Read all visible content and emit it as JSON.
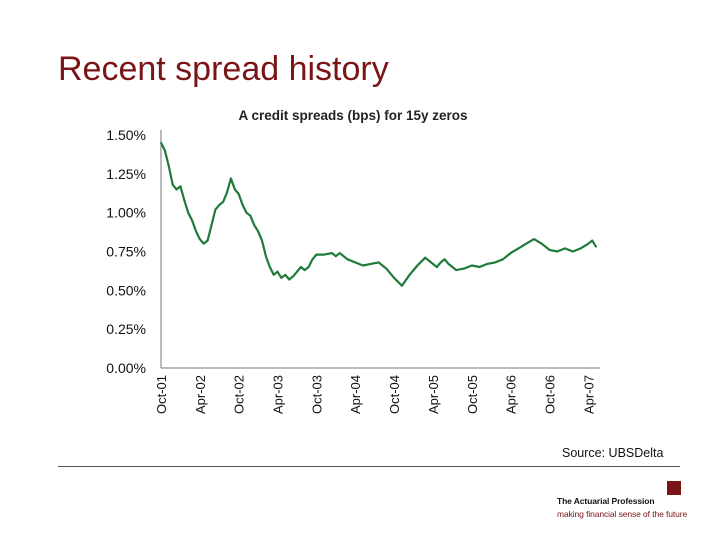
{
  "slide": {
    "title": "Recent spread history",
    "source": "Source: UBSDelta"
  },
  "branding": {
    "name": "The Actuarial Profession",
    "tagline": "making financial sense of the future",
    "color": "#7a1416"
  },
  "chart_data": {
    "type": "line",
    "title": "A credit spreads (bps) for 15y zeros",
    "ylim": [
      0,
      1.5
    ],
    "yticks": [
      1.5,
      1.25,
      1.0,
      0.75,
      0.5,
      0.25,
      0.0
    ],
    "ytick_labels": [
      "1.50%",
      "1.25%",
      "1.00%",
      "0.75%",
      "0.50%",
      "0.25%",
      "0.00%"
    ],
    "xticks": [
      "Oct-01",
      "Apr-02",
      "Oct-02",
      "Apr-03",
      "Oct-03",
      "Apr-04",
      "Oct-04",
      "Apr-05",
      "Oct-05",
      "Apr-06",
      "Oct-06",
      "Apr-07"
    ],
    "xlim": [
      0,
      11.3
    ],
    "line_color": "#1f7a3a",
    "series": [
      {
        "name": "A credit spreads (bps) for 15y zeros",
        "x": [
          0,
          0.1,
          0.2,
          0.3,
          0.4,
          0.5,
          0.6,
          0.7,
          0.8,
          0.9,
          1.0,
          1.1,
          1.2,
          1.3,
          1.4,
          1.5,
          1.6,
          1.7,
          1.8,
          1.9,
          2.0,
          2.1,
          2.2,
          2.3,
          2.4,
          2.5,
          2.6,
          2.7,
          2.8,
          2.9,
          3.0,
          3.1,
          3.2,
          3.3,
          3.4,
          3.5,
          3.6,
          3.7,
          3.8,
          3.9,
          4.0,
          4.2,
          4.4,
          4.5,
          4.6,
          4.8,
          5.0,
          5.2,
          5.4,
          5.6,
          5.8,
          6.0,
          6.2,
          6.4,
          6.6,
          6.8,
          7.0,
          7.1,
          7.2,
          7.3,
          7.4,
          7.6,
          7.8,
          8.0,
          8.2,
          8.4,
          8.6,
          8.8,
          9.0,
          9.2,
          9.4,
          9.6,
          9.8,
          10.0,
          10.2,
          10.4,
          10.6,
          10.8,
          11.0,
          11.1,
          11.2
        ],
        "values": [
          1.45,
          1.4,
          1.3,
          1.18,
          1.15,
          1.17,
          1.08,
          1.0,
          0.95,
          0.88,
          0.83,
          0.8,
          0.82,
          0.92,
          1.02,
          1.05,
          1.07,
          1.13,
          1.22,
          1.15,
          1.12,
          1.05,
          1.0,
          0.98,
          0.92,
          0.88,
          0.82,
          0.72,
          0.65,
          0.6,
          0.62,
          0.58,
          0.6,
          0.57,
          0.59,
          0.62,
          0.65,
          0.63,
          0.65,
          0.7,
          0.73,
          0.73,
          0.74,
          0.72,
          0.74,
          0.7,
          0.68,
          0.66,
          0.67,
          0.68,
          0.64,
          0.58,
          0.53,
          0.6,
          0.66,
          0.71,
          0.67,
          0.65,
          0.68,
          0.7,
          0.67,
          0.63,
          0.64,
          0.66,
          0.65,
          0.67,
          0.68,
          0.7,
          0.74,
          0.77,
          0.8,
          0.83,
          0.8,
          0.76,
          0.75,
          0.77,
          0.75,
          0.77,
          0.8,
          0.82,
          0.78
        ]
      }
    ]
  }
}
